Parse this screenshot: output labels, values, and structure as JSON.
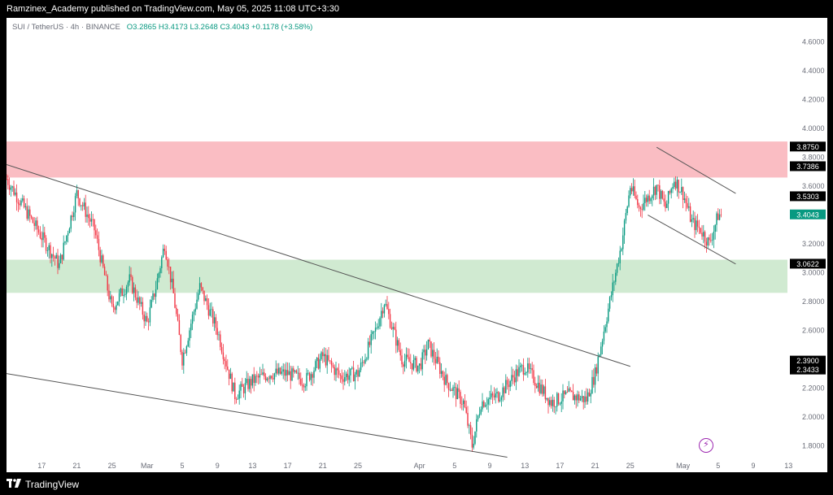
{
  "header": {
    "publisher": "Ramzinex_Academy published on TradingView.com, May 05, 2025 11:08 UTC+3:30"
  },
  "legend": {
    "symbol": "SUI / TetherUS · 4h · BINANCE",
    "open": "O3.2865",
    "high": "H3.4173",
    "low": "L3.2648",
    "close": "C3.4043",
    "change": "+0.1178 (+3.58%)"
  },
  "footer": {
    "brand": "TradingView",
    "logo_icon": "tradingview-logo-icon"
  },
  "indicator_icon": "lightning-bolt-icon",
  "colors": {
    "up": "#089981",
    "down": "#f23645",
    "resistance_zone": "#f9b2b8",
    "support_zone": "#c8e6c9",
    "trendline": "#555555"
  },
  "chart_data": {
    "type": "candlestick",
    "symbol": "SUI / TetherUS",
    "timeframe": "4h",
    "exchange": "BINANCE",
    "ylim": [
      1.7,
      4.7
    ],
    "y_axis_ticks": [
      "4.6000",
      "4.4000",
      "4.2000",
      "4.0000",
      "3.8000",
      "3.6000",
      "3.4000",
      "3.2000",
      "3.0000",
      "2.8000",
      "2.6000",
      "2.4000",
      "2.2000",
      "2.0000",
      "1.8000"
    ],
    "x_axis_ticks": [
      "17",
      "21",
      "25",
      "Mar",
      "5",
      "9",
      "13",
      "17",
      "21",
      "25",
      "Apr",
      "5",
      "9",
      "13",
      "17",
      "21",
      "25",
      "May",
      "5",
      "9",
      "13"
    ],
    "price_labels": [
      {
        "value": "3.8750",
        "style": "black"
      },
      {
        "value": "3.7386",
        "style": "black"
      },
      {
        "value": "3.5303",
        "style": "black"
      },
      {
        "value": "3.4043",
        "style": "last"
      },
      {
        "value": "3.0622",
        "style": "black"
      },
      {
        "value": "2.3900",
        "style": "black"
      },
      {
        "value": "2.3433",
        "style": "black"
      }
    ],
    "zones": [
      {
        "name": "resistance",
        "from": 3.66,
        "to": 3.91
      },
      {
        "name": "support",
        "from": 2.86,
        "to": 3.09
      }
    ],
    "series_anchor_path": [
      [
        "Feb 13",
        3.65
      ],
      [
        "Feb 15",
        3.45
      ],
      [
        "Feb 17",
        3.25
      ],
      [
        "Feb 19",
        3.05
      ],
      [
        "Feb 21",
        3.55
      ],
      [
        "Feb 23",
        3.3
      ],
      [
        "Feb 25",
        2.75
      ],
      [
        "Feb 27",
        2.95
      ],
      [
        "Mar 1",
        2.65
      ],
      [
        "Mar 2",
        2.9
      ],
      [
        "Mar 3",
        3.2
      ],
      [
        "Mar 4",
        2.85
      ],
      [
        "Mar 5",
        2.4
      ],
      [
        "Mar 7",
        2.9
      ],
      [
        "Mar 9",
        2.6
      ],
      [
        "Mar 11",
        2.15
      ],
      [
        "Mar 13",
        2.25
      ],
      [
        "Mar 15",
        2.3
      ],
      [
        "Mar 17",
        2.3
      ],
      [
        "Mar 19",
        2.25
      ],
      [
        "Mar 21",
        2.42
      ],
      [
        "Mar 23",
        2.28
      ],
      [
        "Mar 25",
        2.3
      ],
      [
        "Mar 27",
        2.6
      ],
      [
        "Mar 28",
        2.8
      ],
      [
        "Mar 30",
        2.4
      ],
      [
        "Apr 1",
        2.35
      ],
      [
        "Apr 2",
        2.5
      ],
      [
        "Apr 4",
        2.25
      ],
      [
        "Apr 6",
        2.1
      ],
      [
        "Apr 7",
        1.8
      ],
      [
        "Apr 8",
        2.1
      ],
      [
        "Apr 10",
        2.15
      ],
      [
        "Apr 12",
        2.3
      ],
      [
        "Apr 13",
        2.35
      ],
      [
        "Apr 16",
        2.1
      ],
      [
        "Apr 18",
        2.15
      ],
      [
        "Apr 20",
        2.12
      ],
      [
        "Apr 21",
        2.3
      ],
      [
        "Apr 23",
        2.9
      ],
      [
        "Apr 24",
        3.2
      ],
      [
        "Apr 25",
        3.6
      ],
      [
        "Apr 26",
        3.45
      ],
      [
        "Apr 28",
        3.6
      ],
      [
        "Apr 29",
        3.45
      ],
      [
        "Apr 30",
        3.65
      ],
      [
        "May 1",
        3.55
      ],
      [
        "May 2",
        3.35
      ],
      [
        "May 3",
        3.3
      ],
      [
        "May 4",
        3.2
      ],
      [
        "May 5",
        3.4
      ]
    ],
    "trendlines": [
      {
        "name": "long-descending",
        "from": [
          "Feb 13",
          3.75
        ],
        "to": [
          "Apr 25",
          2.35
        ]
      },
      {
        "name": "lower-channel",
        "from": [
          "Feb 13",
          2.3
        ],
        "to": [
          "Apr 11",
          1.72
        ]
      },
      {
        "name": "upper-wedge",
        "from": [
          "Apr 28",
          3.87
        ],
        "to": [
          "May 7",
          3.55
        ]
      },
      {
        "name": "lower-wedge",
        "from": [
          "Apr 27",
          3.4
        ],
        "to": [
          "May 7",
          3.06
        ]
      }
    ]
  }
}
